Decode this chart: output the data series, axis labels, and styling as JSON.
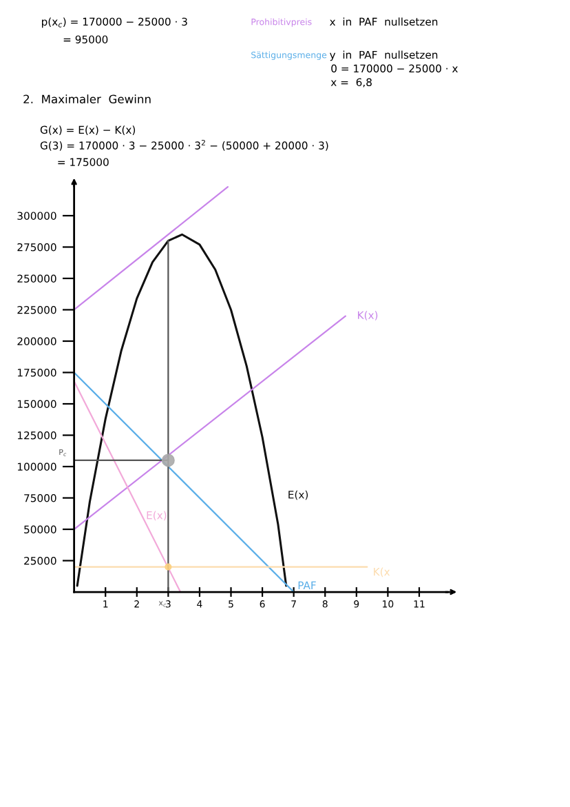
{
  "chart_data": {
    "type": "line",
    "annotations": [
      "p(x$_{c}$) = 170000 − 25000 · 3",
      "= 95000",
      "Prohibitivpreis",
      "x  in  PAF  nullsetzen",
      "Sättigungsmenge",
      "y  in  PAF  nullsetzen",
      "0 = 170000 − 25000 · x",
      "x =  6,8",
      "2.  Maximaler  Gewinn",
      "G(x) = E(x) − K(x)",
      "G(3) = 170000 · 3 − 25000 · 3$^{2}$ − (50000 + 20000 · 3)",
      "= 175000",
      {
        "text": "P$_{c}$",
        "x": 0,
        "y": 105000
      },
      {
        "text": "x$_{c}$",
        "x": 3,
        "y": 0
      }
    ],
    "xlim": [
      0,
      11.9
    ],
    "ylim": [
      0,
      325000
    ],
    "xticks": [
      1,
      2,
      3,
      4,
      5,
      6,
      7,
      8,
      9,
      10,
      11
    ],
    "yticks": [
      25000,
      50000,
      75000,
      100000,
      125000,
      150000,
      175000,
      200000,
      225000,
      250000,
      275000,
      300000
    ],
    "grid": false,
    "legend": false,
    "series": [
      {
        "color": "#c884ea",
        "x": [
          0,
          4.9
        ],
        "values": [
          225000,
          323000
        ]
      },
      {
        "name": "E(x)",
        "color": "#111111",
        "x": [
          0.1,
          0.5,
          1,
          1.5,
          2,
          2.5,
          3,
          3.44,
          4,
          4.5,
          5,
          5.5,
          6,
          6.5,
          6.76
        ],
        "values": [
          5000,
          72000,
          138000,
          192000,
          234000,
          263000,
          280000,
          285000,
          277000,
          257000,
          225000,
          180000,
          123500,
          54000,
          5000
        ]
      },
      {
        "name": "K(x)",
        "color": "#c884ea",
        "x": [
          0,
          8.65
        ],
        "values": [
          50000,
          220000
        ]
      },
      {
        "name": "PAF",
        "color": "#5aaee8",
        "x": [
          0,
          7
        ],
        "values": [
          175000,
          0
        ]
      },
      {
        "name": "E(x)",
        "color": "#f2a9d9",
        "x": [
          0,
          3.39
        ],
        "values": [
          168000,
          0
        ]
      },
      {
        "name": "K(x",
        "color": "#fcdcae",
        "x": [
          0,
          9.34
        ],
        "values": [
          20000,
          20000
        ]
      },
      {
        "color": "#555555",
        "x": [
          3,
          3
        ],
        "values": [
          0,
          280000
        ]
      },
      {
        "color": "#555555",
        "x": [
          0,
          3
        ],
        "values": [
          105000,
          105000
        ]
      },
      {
        "type": "scatter",
        "color": "#aaaaaa",
        "x": [
          3
        ],
        "values": [
          105000
        ]
      },
      {
        "type": "scatter",
        "color": "#fcd080",
        "x": [
          3
        ],
        "values": [
          20000
        ]
      }
    ]
  }
}
